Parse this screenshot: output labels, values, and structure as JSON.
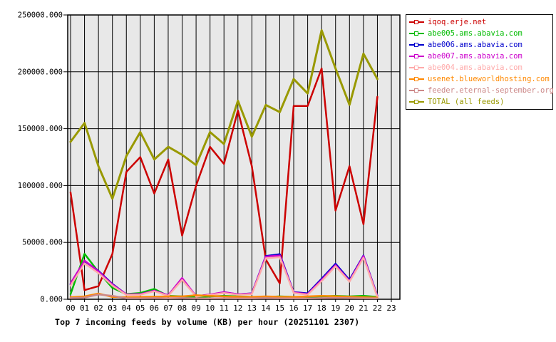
{
  "chart_data": {
    "type": "line",
    "title": "Top 7 incoming feeds by volume (KB) per hour (20251101 2307)",
    "x_labels": [
      "00",
      "01",
      "02",
      "03",
      "04",
      "05",
      "06",
      "07",
      "08",
      "09",
      "10",
      "11",
      "12",
      "13",
      "14",
      "15",
      "16",
      "17",
      "18",
      "19",
      "20",
      "21",
      "22",
      "23"
    ],
    "y_ticks": [
      "0.000",
      "50000.000",
      "100000.000",
      "150000.000",
      "200000.000",
      "250000.000"
    ],
    "ylim": [
      0,
      250000
    ],
    "y_tick_step": 50000,
    "grid": true,
    "plot_bg": "#e8e8e8",
    "grid_color": "#000000",
    "legend_position": "right",
    "series": [
      {
        "name": "iqoq.erje.net",
        "color": "#cc0000",
        "width": 2.5,
        "values": [
          94000,
          8000,
          11500,
          40000,
          112000,
          125000,
          93000,
          123000,
          56000,
          100000,
          134000,
          119000,
          166000,
          117000,
          35000,
          14000,
          170000,
          170000,
          203000,
          78000,
          117000,
          66000,
          178000
        ]
      },
      {
        "name": "abe005.ams.abavia.com",
        "color": "#00bb00",
        "width": 2.5,
        "values": [
          4500,
          40000,
          24000,
          10000,
          4500,
          5500,
          9000,
          3000,
          2500,
          2000,
          2500,
          3000,
          2500,
          2000,
          2000,
          2500,
          2000,
          2000,
          2500,
          3000,
          2500,
          3000,
          2000
        ]
      },
      {
        "name": "abe006.ams.abavia.com",
        "color": "#0000cc",
        "width": 2.5,
        "values": [
          13000,
          33500,
          25000,
          13500,
          4200,
          4500,
          7500,
          3500,
          17500,
          2700,
          4000,
          6000,
          4400,
          5200,
          38000,
          39600,
          6250,
          5200,
          18000,
          31250,
          17000,
          38500,
          3000
        ]
      },
      {
        "name": "abe007.ams.abavia.com",
        "color": "#cc00cc",
        "width": 2.5,
        "values": [
          14000,
          34000,
          24500,
          13000,
          4200,
          4500,
          7500,
          3500,
          18700,
          2700,
          4200,
          6250,
          4400,
          5000,
          37500,
          38500,
          6000,
          4500,
          17000,
          30000,
          16000,
          38000,
          2500
        ]
      },
      {
        "name": "abe004.ams.abavia.com",
        "color": "#ffaaaa",
        "width": 2.5,
        "values": [
          12000,
          31500,
          23000,
          12000,
          3800,
          4000,
          7000,
          3000,
          17000,
          2400,
          3800,
          5500,
          4000,
          4500,
          36000,
          37000,
          5500,
          4000,
          16000,
          29000,
          15500,
          36500,
          2000
        ]
      },
      {
        "name": "usenet.blueworldhosting.com",
        "color": "#ff8800",
        "width": 2.5,
        "values": [
          1800,
          2500,
          5000,
          2000,
          1800,
          2000,
          2200,
          2500,
          2500,
          3500,
          3000,
          2500,
          2200,
          2000,
          2500,
          2200,
          2000,
          2500,
          3000,
          2700,
          2200,
          1800,
          1500
        ]
      },
      {
        "name": "feeder.eternal-september.org",
        "color": "#cc8888",
        "width": 2.5,
        "values": [
          1000,
          1500,
          4200,
          3000,
          900,
          900,
          1000,
          800,
          1000,
          900,
          800,
          900,
          800,
          800,
          1000,
          900,
          800,
          800,
          1000,
          1200,
          1000,
          900,
          800
        ]
      },
      {
        "name": "TOTAL (all feeds)",
        "color": "#999900",
        "width": 3,
        "values": [
          138500,
          155000,
          117000,
          88500,
          126000,
          147000,
          123000,
          134000,
          127000,
          118000,
          147000,
          136500,
          174500,
          143000,
          170800,
          164600,
          193700,
          181000,
          236500,
          203000,
          171000,
          216000,
          193700
        ]
      }
    ]
  }
}
